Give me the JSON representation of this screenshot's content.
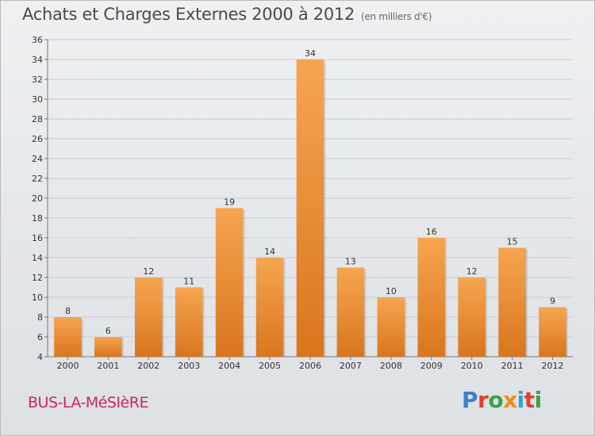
{
  "header": {
    "title": "Achats et Charges Externes 2000 à 2012",
    "subtitle": "(en milliers d'€)"
  },
  "footer": {
    "place": "BUS-LA-MéSIèRE",
    "brand_letters": [
      "P",
      "r",
      "o",
      "x",
      "i",
      "t",
      "i"
    ]
  },
  "colors": {
    "bar_light": "#f6a550",
    "bar_dark": "#d9761e",
    "place_text": "#d0245e",
    "brand": [
      "#3a7fd0",
      "#e0402a",
      "#3ba14a",
      "#f08a1c",
      "#2aa6d8",
      "#e0402a",
      "#3ba14a"
    ]
  },
  "chart_data": {
    "type": "bar",
    "title": "Achats et Charges Externes 2000 à 2012",
    "subtitle": "(en milliers d'€)",
    "categories": [
      "2000",
      "2001",
      "2002",
      "2003",
      "2004",
      "2005",
      "2006",
      "2007",
      "2008",
      "2009",
      "2010",
      "2011",
      "2012"
    ],
    "values": [
      8,
      6,
      12,
      11,
      19,
      14,
      34,
      13,
      10,
      16,
      12,
      15,
      9
    ],
    "ylim": [
      4,
      36
    ],
    "yticks": [
      4,
      6,
      8,
      10,
      12,
      14,
      16,
      18,
      20,
      22,
      24,
      26,
      28,
      30,
      32,
      34,
      36
    ],
    "grid": true,
    "data_labels": true
  }
}
